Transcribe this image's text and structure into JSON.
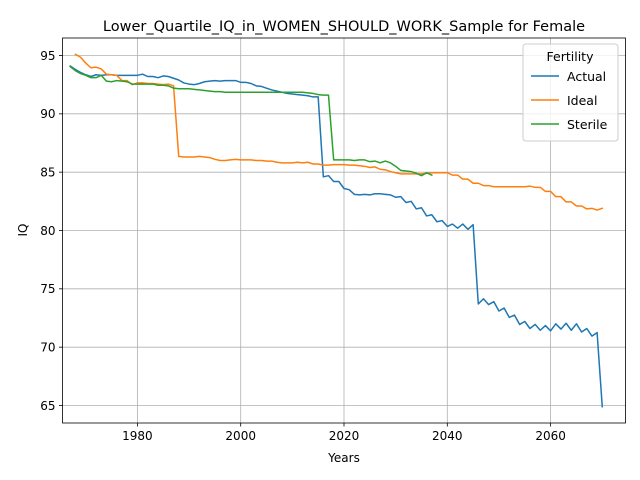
{
  "chart_data": {
    "type": "line",
    "title": "Lower_Quartile_IQ_in_WOMEN_SHOULD_WORK_Sample for Female",
    "xlabel": "Years",
    "ylabel": "IQ",
    "xlim": [
      1965.5,
      2074.5
    ],
    "ylim": [
      63.5,
      96.5
    ],
    "x_ticks": [
      1980,
      2000,
      2020,
      2040,
      2060
    ],
    "y_ticks": [
      65,
      70,
      75,
      80,
      85,
      90,
      95
    ],
    "grid": true,
    "legend": {
      "title": "Fertility",
      "position": "top-right"
    },
    "series": [
      {
        "name": "Actual",
        "color": "#1f77b4",
        "points": [
          [
            1967,
            94.1
          ],
          [
            1968,
            93.8
          ],
          [
            1969,
            93.55
          ],
          [
            1970,
            93.35
          ],
          [
            1971,
            93.2
          ],
          [
            1972,
            93.35
          ],
          [
            1973,
            93.3
          ],
          [
            1974,
            93.35
          ],
          [
            1975,
            93.35
          ],
          [
            1976,
            93.3
          ],
          [
            1977,
            93.3
          ],
          [
            1978,
            93.3
          ],
          [
            1979,
            93.3
          ],
          [
            1980,
            93.3
          ],
          [
            1981,
            93.4
          ],
          [
            1982,
            93.2
          ],
          [
            1983,
            93.2
          ],
          [
            1984,
            93.1
          ],
          [
            1985,
            93.25
          ],
          [
            1986,
            93.2
          ],
          [
            1987,
            93.05
          ],
          [
            1988,
            92.9
          ],
          [
            1989,
            92.65
          ],
          [
            1990,
            92.55
          ],
          [
            1991,
            92.5
          ],
          [
            1992,
            92.6
          ],
          [
            1993,
            92.75
          ],
          [
            1994,
            92.8
          ],
          [
            1995,
            92.85
          ],
          [
            1996,
            92.8
          ],
          [
            1997,
            92.85
          ],
          [
            1998,
            92.85
          ],
          [
            1999,
            92.85
          ],
          [
            2000,
            92.7
          ],
          [
            2001,
            92.7
          ],
          [
            2002,
            92.6
          ],
          [
            2003,
            92.4
          ],
          [
            2004,
            92.35
          ],
          [
            2005,
            92.2
          ],
          [
            2006,
            92.05
          ],
          [
            2007,
            91.95
          ],
          [
            2008,
            91.85
          ],
          [
            2009,
            91.75
          ],
          [
            2010,
            91.7
          ],
          [
            2011,
            91.65
          ],
          [
            2012,
            91.6
          ],
          [
            2013,
            91.55
          ],
          [
            2014,
            91.45
          ],
          [
            2015,
            91.45
          ],
          [
            2016,
            84.6
          ],
          [
            2017,
            84.7
          ],
          [
            2018,
            84.2
          ],
          [
            2019,
            84.2
          ],
          [
            2020,
            83.6
          ],
          [
            2021,
            83.5
          ],
          [
            2022,
            83.1
          ],
          [
            2023,
            83.05
          ],
          [
            2024,
            83.1
          ],
          [
            2025,
            83.05
          ],
          [
            2026,
            83.15
          ],
          [
            2027,
            83.15
          ],
          [
            2028,
            83.1
          ],
          [
            2029,
            83.05
          ],
          [
            2030,
            82.85
          ],
          [
            2031,
            82.9
          ],
          [
            2032,
            82.4
          ],
          [
            2033,
            82.5
          ],
          [
            2034,
            81.85
          ],
          [
            2035,
            81.95
          ],
          [
            2036,
            81.25
          ],
          [
            2037,
            81.35
          ],
          [
            2038,
            80.75
          ],
          [
            2039,
            80.85
          ],
          [
            2040,
            80.35
          ],
          [
            2041,
            80.55
          ],
          [
            2042,
            80.2
          ],
          [
            2043,
            80.55
          ],
          [
            2044,
            80.1
          ],
          [
            2045,
            80.5
          ],
          [
            2046,
            73.7
          ],
          [
            2047,
            74.15
          ],
          [
            2048,
            73.65
          ],
          [
            2049,
            73.9
          ],
          [
            2050,
            73.1
          ],
          [
            2051,
            73.35
          ],
          [
            2052,
            72.55
          ],
          [
            2053,
            72.75
          ],
          [
            2054,
            71.95
          ],
          [
            2055,
            72.2
          ],
          [
            2056,
            71.6
          ],
          [
            2057,
            71.95
          ],
          [
            2058,
            71.45
          ],
          [
            2059,
            71.85
          ],
          [
            2060,
            71.4
          ],
          [
            2061,
            72.0
          ],
          [
            2062,
            71.55
          ],
          [
            2063,
            72.05
          ],
          [
            2064,
            71.45
          ],
          [
            2065,
            72.0
          ],
          [
            2066,
            71.3
          ],
          [
            2067,
            71.6
          ],
          [
            2068,
            70.95
          ],
          [
            2069,
            71.25
          ],
          [
            2070,
            64.9
          ]
        ]
      },
      {
        "name": "Ideal",
        "color": "#ff7f0e",
        "points": [
          [
            1968,
            95.1
          ],
          [
            1969,
            94.85
          ],
          [
            1970,
            94.35
          ],
          [
            1971,
            93.95
          ],
          [
            1972,
            94.0
          ],
          [
            1973,
            93.85
          ],
          [
            1974,
            93.4
          ],
          [
            1975,
            93.35
          ],
          [
            1976,
            93.3
          ],
          [
            1977,
            92.85
          ],
          [
            1978,
            92.85
          ],
          [
            1979,
            92.5
          ],
          [
            1980,
            92.65
          ],
          [
            1981,
            92.65
          ],
          [
            1982,
            92.6
          ],
          [
            1983,
            92.6
          ],
          [
            1984,
            92.55
          ],
          [
            1985,
            92.5
          ],
          [
            1986,
            92.55
          ],
          [
            1987,
            92.4
          ],
          [
            1988,
            86.35
          ],
          [
            1989,
            86.3
          ],
          [
            1990,
            86.3
          ],
          [
            1991,
            86.3
          ],
          [
            1992,
            86.35
          ],
          [
            1993,
            86.3
          ],
          [
            1994,
            86.25
          ],
          [
            1995,
            86.1
          ],
          [
            1996,
            86.0
          ],
          [
            1997,
            86.0
          ],
          [
            1998,
            86.05
          ],
          [
            1999,
            86.1
          ],
          [
            2000,
            86.05
          ],
          [
            2001,
            86.05
          ],
          [
            2002,
            86.05
          ],
          [
            2003,
            86.0
          ],
          [
            2004,
            86.0
          ],
          [
            2005,
            85.95
          ],
          [
            2006,
            85.95
          ],
          [
            2007,
            85.85
          ],
          [
            2008,
            85.8
          ],
          [
            2009,
            85.8
          ],
          [
            2010,
            85.8
          ],
          [
            2011,
            85.85
          ],
          [
            2012,
            85.8
          ],
          [
            2013,
            85.85
          ],
          [
            2014,
            85.7
          ],
          [
            2015,
            85.7
          ],
          [
            2016,
            85.6
          ],
          [
            2017,
            85.6
          ],
          [
            2018,
            85.65
          ],
          [
            2019,
            85.65
          ],
          [
            2020,
            85.65
          ],
          [
            2021,
            85.6
          ],
          [
            2022,
            85.6
          ],
          [
            2023,
            85.55
          ],
          [
            2024,
            85.5
          ],
          [
            2025,
            85.4
          ],
          [
            2026,
            85.45
          ],
          [
            2027,
            85.25
          ],
          [
            2028,
            85.2
          ],
          [
            2029,
            85.05
          ],
          [
            2030,
            84.95
          ],
          [
            2031,
            84.85
          ],
          [
            2032,
            84.85
          ],
          [
            2033,
            84.85
          ],
          [
            2034,
            84.85
          ],
          [
            2035,
            84.85
          ],
          [
            2036,
            84.9
          ],
          [
            2037,
            84.95
          ],
          [
            2038,
            84.95
          ],
          [
            2039,
            84.95
          ],
          [
            2040,
            84.95
          ],
          [
            2041,
            84.75
          ],
          [
            2042,
            84.75
          ],
          [
            2043,
            84.4
          ],
          [
            2044,
            84.4
          ],
          [
            2045,
            84.05
          ],
          [
            2046,
            84.05
          ],
          [
            2047,
            83.85
          ],
          [
            2048,
            83.85
          ],
          [
            2049,
            83.75
          ],
          [
            2050,
            83.75
          ],
          [
            2051,
            83.75
          ],
          [
            2052,
            83.75
          ],
          [
            2053,
            83.75
          ],
          [
            2054,
            83.75
          ],
          [
            2055,
            83.75
          ],
          [
            2056,
            83.8
          ],
          [
            2057,
            83.7
          ],
          [
            2058,
            83.7
          ],
          [
            2059,
            83.35
          ],
          [
            2060,
            83.35
          ],
          [
            2061,
            82.9
          ],
          [
            2062,
            82.9
          ],
          [
            2063,
            82.45
          ],
          [
            2064,
            82.45
          ],
          [
            2065,
            82.1
          ],
          [
            2066,
            82.1
          ],
          [
            2067,
            81.85
          ],
          [
            2068,
            81.9
          ],
          [
            2069,
            81.75
          ],
          [
            2070,
            81.9
          ]
        ]
      },
      {
        "name": "Sterile",
        "color": "#2ca02c",
        "points": [
          [
            1967,
            94.05
          ],
          [
            1968,
            93.7
          ],
          [
            1969,
            93.45
          ],
          [
            1970,
            93.3
          ],
          [
            1971,
            93.1
          ],
          [
            1972,
            93.1
          ],
          [
            1973,
            93.3
          ],
          [
            1974,
            92.8
          ],
          [
            1975,
            92.75
          ],
          [
            1976,
            92.85
          ],
          [
            1977,
            92.8
          ],
          [
            1978,
            92.75
          ],
          [
            1979,
            92.55
          ],
          [
            1980,
            92.55
          ],
          [
            1981,
            92.55
          ],
          [
            1982,
            92.55
          ],
          [
            1983,
            92.55
          ],
          [
            1984,
            92.45
          ],
          [
            1985,
            92.45
          ],
          [
            1986,
            92.4
          ],
          [
            1987,
            92.2
          ],
          [
            1988,
            92.15
          ],
          [
            1989,
            92.15
          ],
          [
            1990,
            92.15
          ],
          [
            1991,
            92.1
          ],
          [
            1992,
            92.05
          ],
          [
            1993,
            92.0
          ],
          [
            1994,
            91.95
          ],
          [
            1995,
            91.9
          ],
          [
            1996,
            91.9
          ],
          [
            1997,
            91.85
          ],
          [
            1998,
            91.85
          ],
          [
            1999,
            91.85
          ],
          [
            2000,
            91.85
          ],
          [
            2001,
            91.85
          ],
          [
            2002,
            91.85
          ],
          [
            2003,
            91.85
          ],
          [
            2004,
            91.85
          ],
          [
            2005,
            91.85
          ],
          [
            2006,
            91.85
          ],
          [
            2007,
            91.85
          ],
          [
            2008,
            91.85
          ],
          [
            2009,
            91.85
          ],
          [
            2010,
            91.85
          ],
          [
            2011,
            91.85
          ],
          [
            2012,
            91.85
          ],
          [
            2013,
            91.8
          ],
          [
            2014,
            91.75
          ],
          [
            2015,
            91.65
          ],
          [
            2016,
            91.6
          ],
          [
            2017,
            91.6
          ],
          [
            2018,
            86.05
          ],
          [
            2019,
            86.05
          ],
          [
            2020,
            86.05
          ],
          [
            2021,
            86.05
          ],
          [
            2022,
            86.0
          ],
          [
            2023,
            86.05
          ],
          [
            2024,
            86.05
          ],
          [
            2025,
            85.9
          ],
          [
            2026,
            85.95
          ],
          [
            2027,
            85.8
          ],
          [
            2028,
            85.95
          ],
          [
            2029,
            85.8
          ],
          [
            2030,
            85.5
          ],
          [
            2031,
            85.15
          ],
          [
            2032,
            85.1
          ],
          [
            2033,
            85.05
          ],
          [
            2034,
            84.9
          ],
          [
            2035,
            84.7
          ],
          [
            2036,
            84.95
          ],
          [
            2037,
            84.75
          ]
        ]
      }
    ]
  }
}
